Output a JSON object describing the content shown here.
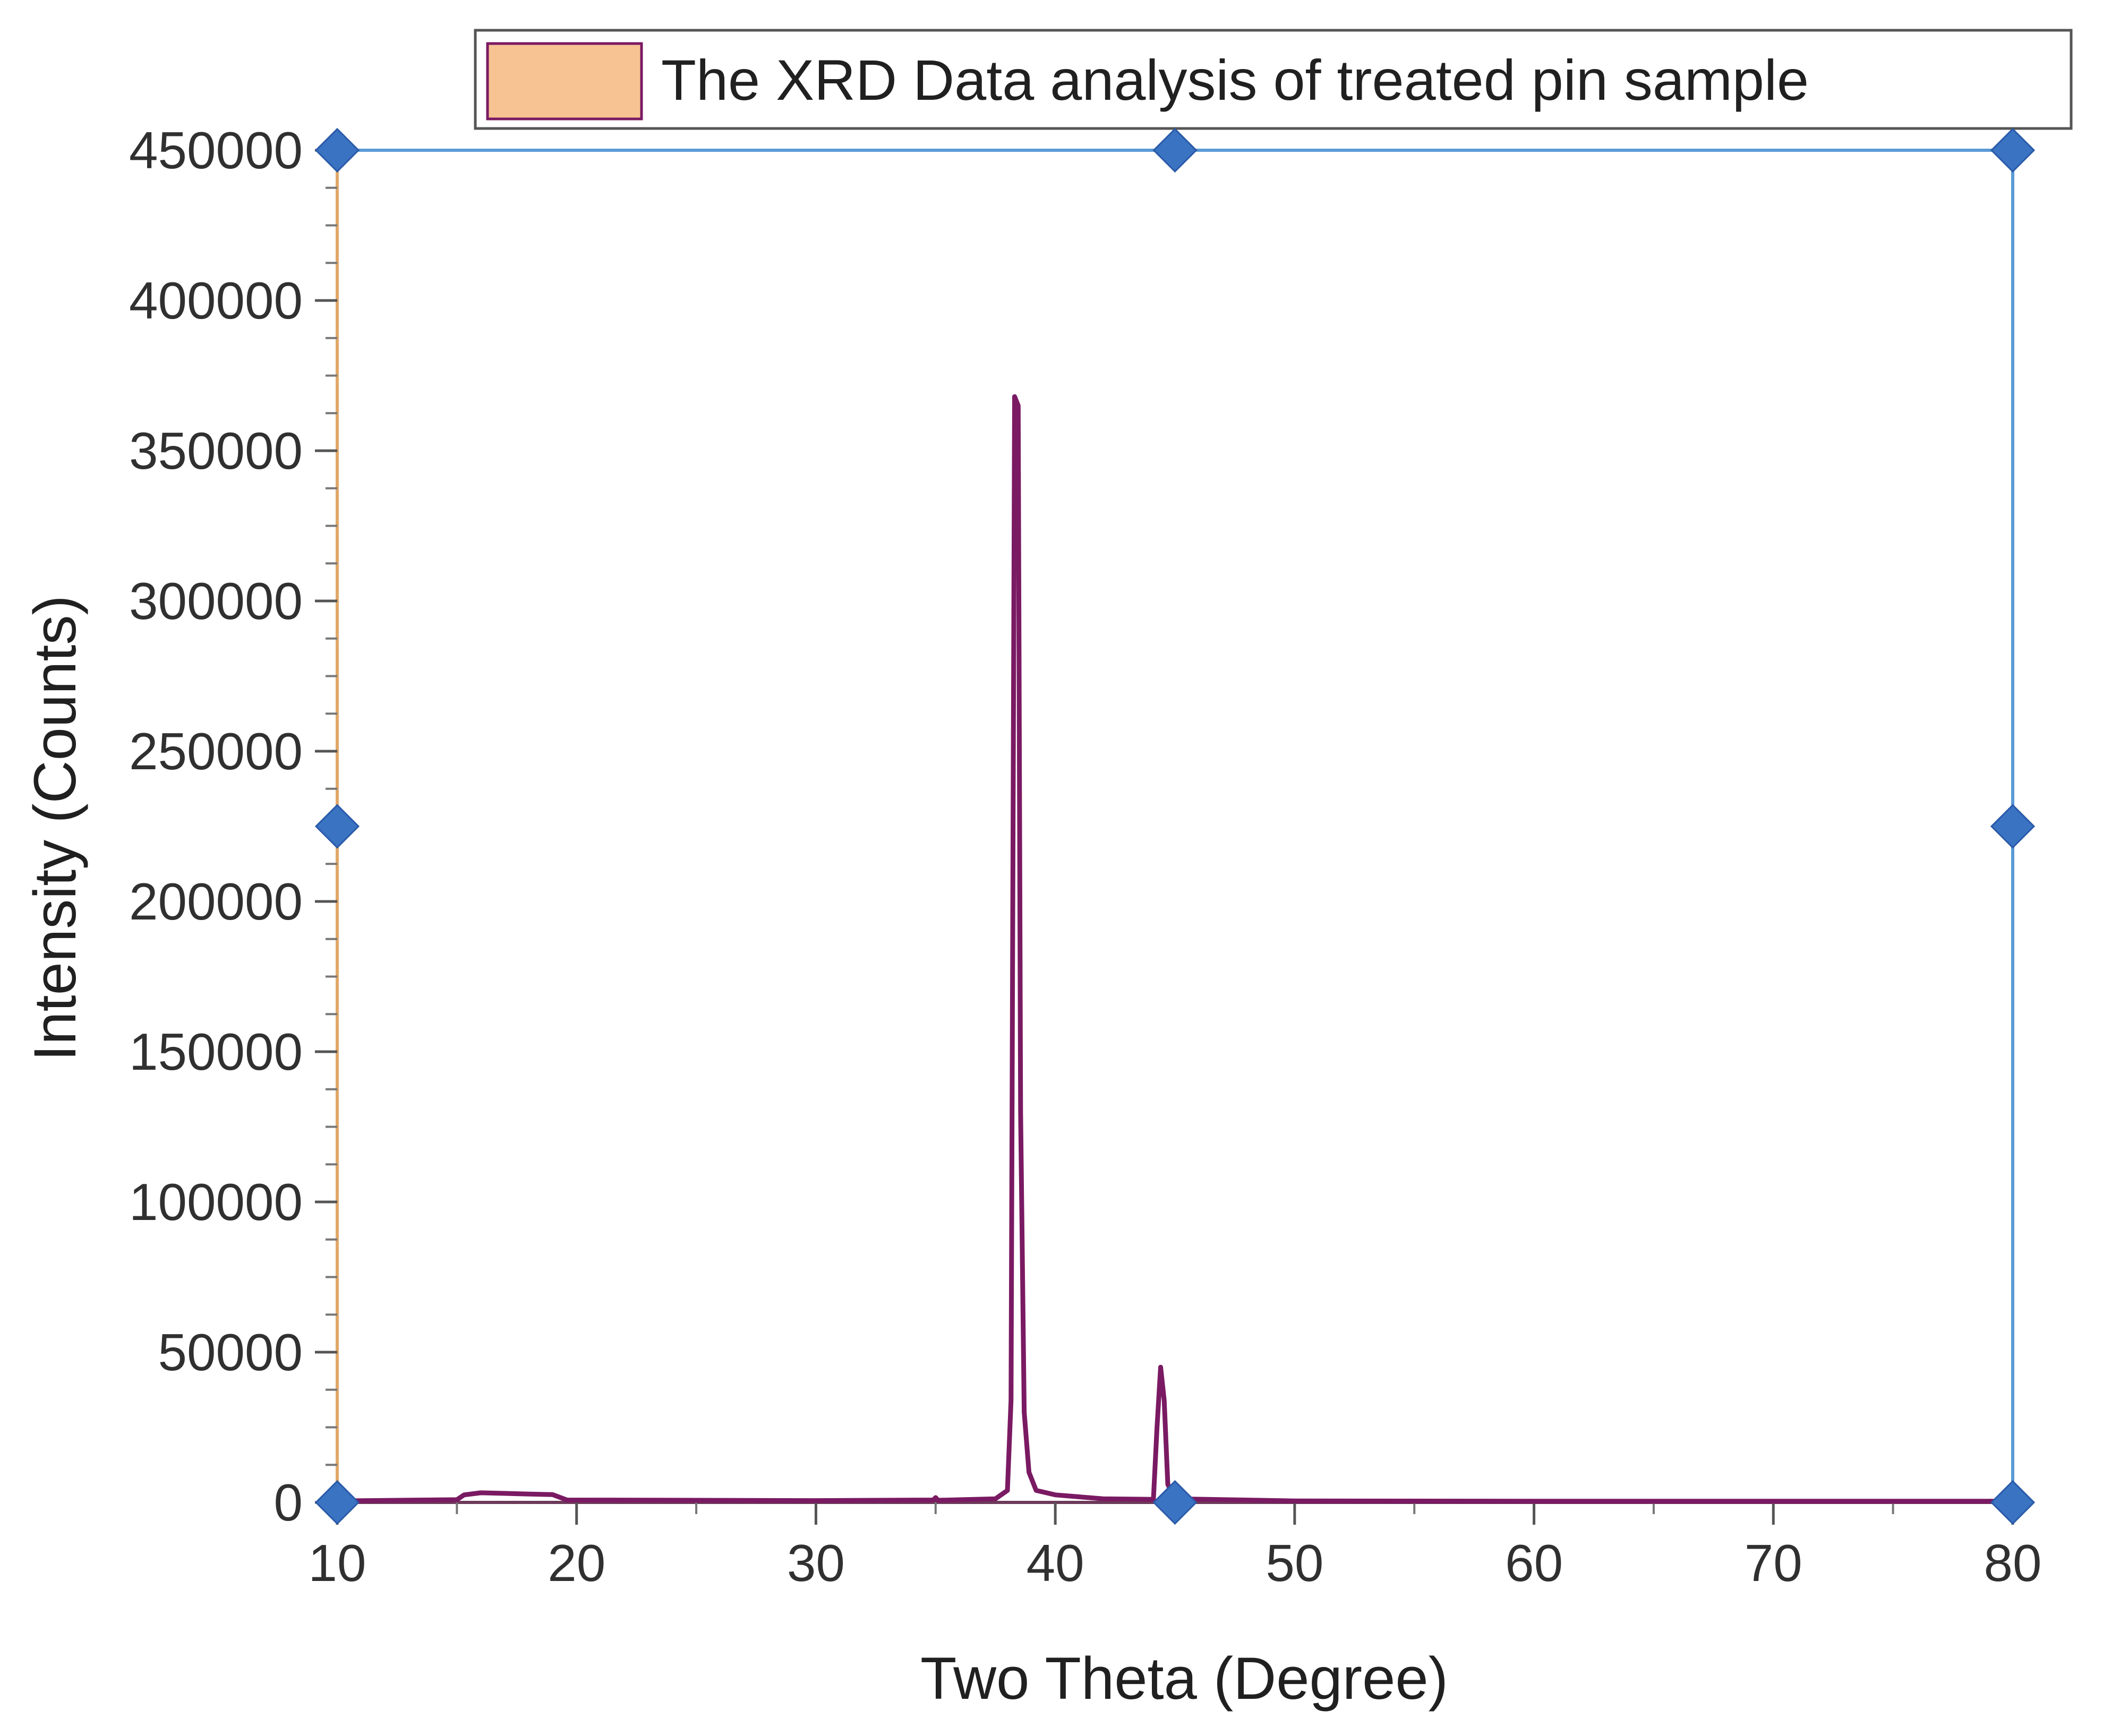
{
  "chart_data": {
    "type": "line",
    "title": "",
    "xlabel": "Two Theta (Degree)",
    "ylabel": "Intensity (Counts)",
    "xlim": [
      10,
      80
    ],
    "ylim": [
      0,
      450000
    ],
    "x_ticks": [
      10,
      20,
      30,
      40,
      50,
      60,
      70,
      80
    ],
    "y_ticks": [
      0,
      50000,
      100000,
      150000,
      200000,
      250000,
      300000,
      350000,
      400000,
      450000
    ],
    "grid": false,
    "legend_position": "top",
    "series": [
      {
        "name": "The XRD Data analysis of treated pin sample",
        "line_color": "#7a1a63",
        "swatch_color": "#f8c392",
        "points": [
          [
            10,
            500
          ],
          [
            15,
            900
          ],
          [
            15.3,
            2500
          ],
          [
            16,
            3200
          ],
          [
            17,
            3000
          ],
          [
            18,
            2800
          ],
          [
            19,
            2600
          ],
          [
            19.6,
            800
          ],
          [
            25,
            700
          ],
          [
            30,
            600
          ],
          [
            34.9,
            800
          ],
          [
            35,
            1600
          ],
          [
            35.1,
            700
          ],
          [
            37.5,
            1200
          ],
          [
            38.0,
            4000
          ],
          [
            38.15,
            34000
          ],
          [
            38.3,
            368000
          ],
          [
            38.45,
            365000
          ],
          [
            38.55,
            130000
          ],
          [
            38.7,
            30000
          ],
          [
            38.9,
            10000
          ],
          [
            39.2,
            4000
          ],
          [
            40,
            2500
          ],
          [
            42,
            1200
          ],
          [
            44.1,
            1000
          ],
          [
            44.25,
            25000
          ],
          [
            44.4,
            45000
          ],
          [
            44.55,
            34000
          ],
          [
            44.7,
            6000
          ],
          [
            45,
            1200
          ],
          [
            50,
            500
          ],
          [
            60,
            400
          ],
          [
            70,
            400
          ],
          [
            80,
            400
          ]
        ]
      }
    ],
    "marker_color": "#3a73c2",
    "frame_color": "#5b9bd5",
    "left_axis_color": "#e0a86a"
  }
}
